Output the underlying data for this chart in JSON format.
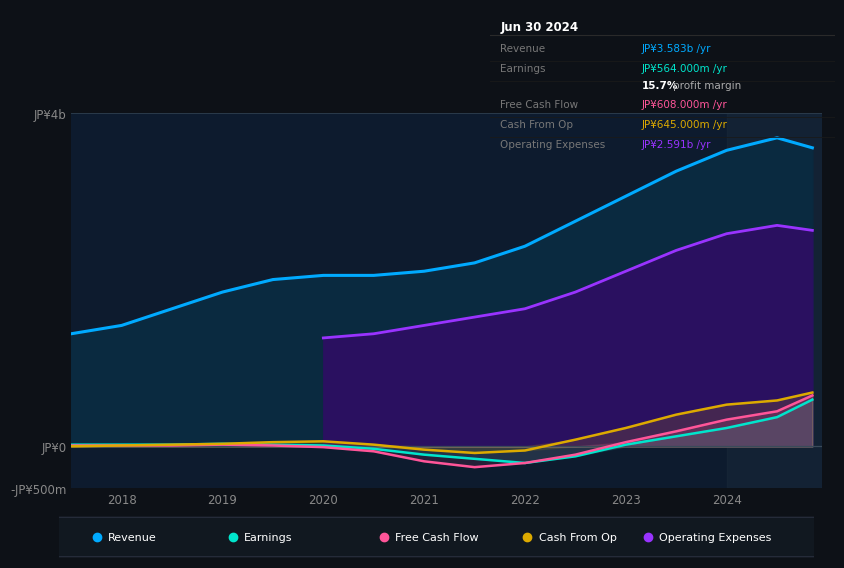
{
  "bg_color": "#0d1117",
  "chart_bg": "#0d1b2e",
  "title": "Jun 30 2024",
  "years": [
    2017.5,
    2018.0,
    2018.5,
    2019.0,
    2019.5,
    2020.0,
    2020.5,
    2021.0,
    2021.5,
    2022.0,
    2022.5,
    2023.0,
    2023.5,
    2024.0,
    2024.5,
    2024.85
  ],
  "revenue": [
    1.35,
    1.45,
    1.65,
    1.85,
    2.0,
    2.05,
    2.05,
    2.1,
    2.2,
    2.4,
    2.7,
    3.0,
    3.3,
    3.55,
    3.7,
    3.58
  ],
  "op_expenses": [
    null,
    null,
    null,
    null,
    null,
    1.3,
    1.35,
    1.45,
    1.55,
    1.65,
    1.85,
    2.1,
    2.35,
    2.55,
    2.65,
    2.59
  ],
  "earnings": [
    0.02,
    0.02,
    0.02,
    0.03,
    0.02,
    0.01,
    -0.03,
    -0.1,
    -0.15,
    -0.2,
    -0.12,
    0.02,
    0.12,
    0.22,
    0.35,
    0.56
  ],
  "free_cash_flow": [
    0.01,
    0.01,
    0.01,
    0.02,
    0.01,
    -0.01,
    -0.06,
    -0.18,
    -0.25,
    -0.2,
    -0.1,
    0.05,
    0.18,
    0.32,
    0.42,
    0.61
  ],
  "cash_from_op": [
    0.0,
    0.01,
    0.02,
    0.03,
    0.05,
    0.06,
    0.02,
    -0.04,
    -0.08,
    -0.05,
    0.08,
    0.22,
    0.38,
    0.5,
    0.55,
    0.645
  ],
  "revenue_color": "#00aaff",
  "revenue_fill": "#0a2a40",
  "op_expenses_color": "#9933ff",
  "op_expenses_fill": "#2a1060",
  "earnings_color": "#00e5cc",
  "fcf_color": "#ff5599",
  "cashop_color": "#ddaa00",
  "ylim": [
    -0.5,
    4.0
  ],
  "yticks": [
    4.0,
    0.0,
    -0.5
  ],
  "ytick_labels": [
    "JP¥4b",
    "JP¥0",
    "-JP¥500m"
  ],
  "xlabel_ticks": [
    2018,
    2019,
    2020,
    2021,
    2022,
    2023,
    2024
  ],
  "highlight_start": 2024.0,
  "info_box": {
    "title": "Jun 30 2024",
    "rows": [
      {
        "label": "Revenue",
        "value": "JP¥3.583b /yr",
        "value_color": "#00aaff"
      },
      {
        "label": "Earnings",
        "value": "JP¥564.000m /yr",
        "value_color": "#00e5cc"
      },
      {
        "label": "",
        "value": "15.7% profit margin",
        "value_color": "#cccccc",
        "bold": "15.7%"
      },
      {
        "label": "Free Cash Flow",
        "value": "JP¥608.000m /yr",
        "value_color": "#ff5599"
      },
      {
        "label": "Cash From Op",
        "value": "JP¥645.000m /yr",
        "value_color": "#ddaa00"
      },
      {
        "label": "Operating Expenses",
        "value": "JP¥2.591b /yr",
        "value_color": "#9933ff"
      }
    ]
  },
  "legend_items": [
    {
      "label": "Revenue",
      "color": "#00aaff"
    },
    {
      "label": "Earnings",
      "color": "#00e5cc"
    },
    {
      "label": "Free Cash Flow",
      "color": "#ff5599"
    },
    {
      "label": "Cash From Op",
      "color": "#ddaa00"
    },
    {
      "label": "Operating Expenses",
      "color": "#9933ff"
    }
  ]
}
